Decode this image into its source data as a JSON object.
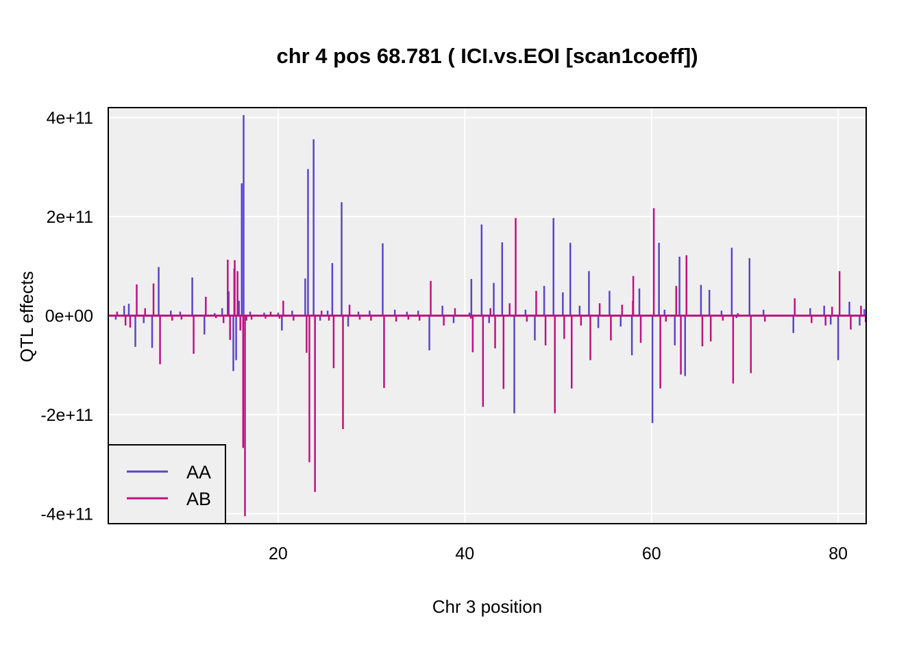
{
  "chart_data": {
    "type": "line",
    "title": "chr 4 pos 68.781 ( ICI.vs.EOI  [scan1coeff])",
    "xlabel": "Chr 3 position",
    "ylabel": "QTL effects",
    "xlim": [
      1.8,
      83.0
    ],
    "ylim": [
      -420000000000.0,
      420000000000.0
    ],
    "x_ticks": [
      20,
      40,
      60,
      80
    ],
    "x_tick_labels": [
      "20",
      "40",
      "60",
      "80"
    ],
    "y_ticks": [
      400000000000,
      200000000000,
      0,
      -200000000000,
      -400000000000
    ],
    "y_tick_labels": [
      "4e+11",
      "2e+11",
      "0e+00",
      "-2e+11",
      "-4e+11"
    ],
    "legend": {
      "position": "bottom-left",
      "entries": [
        "AA",
        "AB"
      ]
    },
    "series": [
      {
        "name": "AA",
        "color": "#5a44c8"
      },
      {
        "name": "AB",
        "color": "#c0117f"
      }
    ],
    "spikes": [
      {
        "x": 2.6,
        "v": -0.08
      },
      {
        "x": 3.5,
        "v": 0.2
      },
      {
        "x": 4.0,
        "v": 0.24
      },
      {
        "x": 4.7,
        "v": -0.63
      },
      {
        "x": 5.6,
        "v": -0.15
      },
      {
        "x": 6.5,
        "v": -0.65
      },
      {
        "x": 7.2,
        "v": 0.98
      },
      {
        "x": 8.5,
        "v": 0.1
      },
      {
        "x": 9.5,
        "v": 0.08
      },
      {
        "x": 10.8,
        "v": 0.77
      },
      {
        "x": 12.1,
        "v": -0.38
      },
      {
        "x": 13.2,
        "v": 0.05
      },
      {
        "x": 14.0,
        "v": 0.15
      },
      {
        "x": 14.7,
        "v": 0.49
      },
      {
        "x": 15.2,
        "v": -1.12
      },
      {
        "x": 15.5,
        "v": -0.9
      },
      {
        "x": 15.8,
        "v": 0.3
      },
      {
        "x": 16.1,
        "v": 2.67
      },
      {
        "x": 16.3,
        "v": 4.05
      },
      {
        "x": 17.0,
        "v": 0.08
      },
      {
        "x": 18.5,
        "v": 0.06
      },
      {
        "x": 20.0,
        "v": 0.06
      },
      {
        "x": 20.4,
        "v": -0.3
      },
      {
        "x": 21.5,
        "v": 0.1
      },
      {
        "x": 22.9,
        "v": 0.75
      },
      {
        "x": 23.2,
        "v": 2.96
      },
      {
        "x": 23.8,
        "v": 3.56
      },
      {
        "x": 24.5,
        "v": -0.1
      },
      {
        "x": 25.3,
        "v": 0.1
      },
      {
        "x": 25.8,
        "v": 1.06
      },
      {
        "x": 26.8,
        "v": 2.29
      },
      {
        "x": 27.5,
        "v": -0.22
      },
      {
        "x": 28.6,
        "v": 0.08
      },
      {
        "x": 29.8,
        "v": 0.1
      },
      {
        "x": 31.2,
        "v": 1.46
      },
      {
        "x": 32.5,
        "v": 0.12
      },
      {
        "x": 33.8,
        "v": 0.08
      },
      {
        "x": 35.0,
        "v": 0.1
      },
      {
        "x": 36.2,
        "v": -0.7
      },
      {
        "x": 37.6,
        "v": 0.2
      },
      {
        "x": 38.8,
        "v": -0.15
      },
      {
        "x": 40.5,
        "v": 0.06
      },
      {
        "x": 40.7,
        "v": 0.74
      },
      {
        "x": 41.8,
        "v": 1.84
      },
      {
        "x": 42.6,
        "v": -0.15
      },
      {
        "x": 43.1,
        "v": 0.66
      },
      {
        "x": 44.0,
        "v": 1.48
      },
      {
        "x": 45.3,
        "v": -1.97
      },
      {
        "x": 46.5,
        "v": 0.12
      },
      {
        "x": 47.5,
        "v": -0.5
      },
      {
        "x": 48.5,
        "v": 0.6
      },
      {
        "x": 49.5,
        "v": 1.97
      },
      {
        "x": 50.5,
        "v": 0.47
      },
      {
        "x": 51.3,
        "v": 1.47
      },
      {
        "x": 52.3,
        "v": 0.2
      },
      {
        "x": 53.3,
        "v": 0.9
      },
      {
        "x": 54.3,
        "v": -0.25
      },
      {
        "x": 55.5,
        "v": 0.5
      },
      {
        "x": 56.7,
        "v": -0.22
      },
      {
        "x": 57.9,
        "v": -0.8
      },
      {
        "x": 58.7,
        "v": 0.55
      },
      {
        "x": 60.1,
        "v": -2.17
      },
      {
        "x": 60.8,
        "v": 1.47
      },
      {
        "x": 61.4,
        "v": 0.12
      },
      {
        "x": 62.5,
        "v": -0.6
      },
      {
        "x": 63.0,
        "v": 1.19
      },
      {
        "x": 63.6,
        "v": -1.22
      },
      {
        "x": 65.3,
        "v": 0.62
      },
      {
        "x": 66.2,
        "v": 0.52
      },
      {
        "x": 67.5,
        "v": 0.1
      },
      {
        "x": 68.6,
        "v": 1.37
      },
      {
        "x": 69.1,
        "v": -0.05
      },
      {
        "x": 70.5,
        "v": 1.16
      },
      {
        "x": 72.0,
        "v": 0.12
      },
      {
        "x": 75.2,
        "v": -0.35
      },
      {
        "x": 77.0,
        "v": 0.15
      },
      {
        "x": 78.5,
        "v": 0.2
      },
      {
        "x": 79.2,
        "v": -0.18
      },
      {
        "x": 80.0,
        "v": -0.9
      },
      {
        "x": 81.2,
        "v": 0.28
      },
      {
        "x": 82.3,
        "v": -0.2
      },
      {
        "x": 82.8,
        "v": 0.13
      }
    ],
    "ab_only_spikes": [
      {
        "x": 14.6,
        "v": 1.13
      },
      {
        "x": 15.3,
        "v": 0.95
      },
      {
        "x": 16.6,
        "v": -0.1
      },
      {
        "x": 19.2,
        "v": 0.08
      },
      {
        "x": 44.8,
        "v": 0.25
      },
      {
        "x": 58.0,
        "v": 0.3
      }
    ]
  }
}
